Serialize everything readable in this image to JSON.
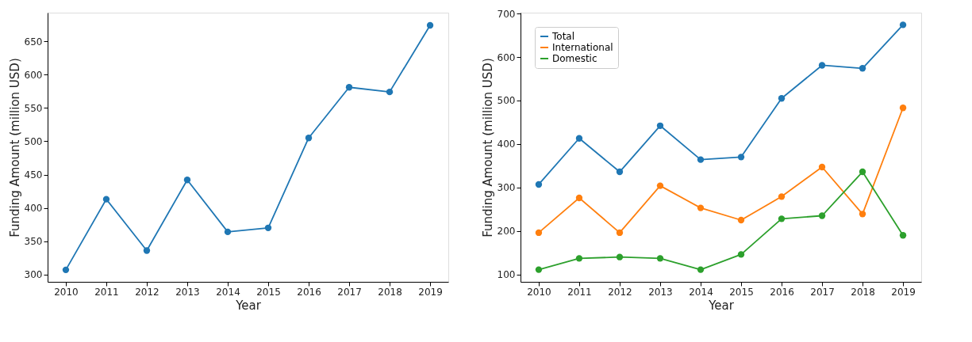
{
  "chart_data": [
    {
      "type": "line",
      "xlabel": "Year",
      "ylabel": "Funding Amount (million USD)",
      "x": [
        2010,
        2011,
        2012,
        2013,
        2014,
        2015,
        2016,
        2017,
        2018,
        2019
      ],
      "series": [
        {
          "color": "#1f77b4",
          "values": [
            307,
            413,
            336,
            442,
            364,
            370,
            505,
            581,
            574,
            674
          ]
        }
      ],
      "xlim": [
        2009.55,
        2019.45
      ],
      "xticks": [
        2010,
        2011,
        2012,
        2013,
        2014,
        2015,
        2016,
        2017,
        2018,
        2019
      ],
      "ylim": [
        289,
        693
      ],
      "yticks": [
        300,
        350,
        400,
        450,
        500,
        550,
        600,
        650
      ],
      "grid": false,
      "legend": false,
      "marker": "circle",
      "line_style": "solid"
    },
    {
      "type": "line",
      "xlabel": "Year",
      "ylabel": "Funding Amount (million USD)",
      "x": [
        2010,
        2011,
        2012,
        2013,
        2014,
        2015,
        2016,
        2017,
        2018,
        2019
      ],
      "series": [
        {
          "name": "Total",
          "color": "#1f77b4",
          "values": [
            307,
            413,
            336,
            442,
            364,
            370,
            505,
            581,
            574,
            674
          ]
        },
        {
          "name": "International",
          "color": "#ff7f0e",
          "values": [
            196,
            276,
            196,
            304,
            253,
            225,
            279,
            347,
            239,
            483
          ]
        },
        {
          "name": "Domestic",
          "color": "#2ca02c",
          "values": [
            111,
            137,
            140,
            137,
            111,
            146,
            228,
            235,
            336,
            190
          ]
        }
      ],
      "xlim": [
        2009.55,
        2019.45
      ],
      "xticks": [
        2010,
        2011,
        2012,
        2013,
        2014,
        2015,
        2016,
        2017,
        2018,
        2019
      ],
      "ylim": [
        83,
        702
      ],
      "yticks": [
        100,
        200,
        300,
        400,
        500,
        600,
        700
      ],
      "grid": false,
      "legend": "top left",
      "marker": "circle",
      "line_style": "solid"
    }
  ]
}
